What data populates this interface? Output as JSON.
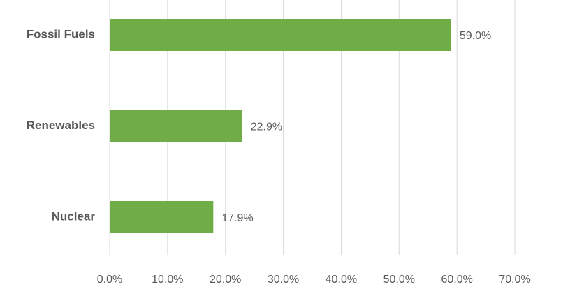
{
  "chart_data": {
    "type": "hbar",
    "categories": [
      "Fossil Fuels",
      "Renewables",
      "Nuclear"
    ],
    "values": [
      59.0,
      22.9,
      17.9
    ],
    "value_labels": [
      "59.0%",
      "22.9%",
      "17.9%"
    ],
    "color": "#70ad47",
    "xlim": [
      0,
      70
    ],
    "xticks": [
      {
        "value": 0,
        "label": "0.0%"
      },
      {
        "value": 10,
        "label": "10.0%"
      },
      {
        "value": 20,
        "label": "20.0%"
      },
      {
        "value": 30,
        "label": "30.0%"
      },
      {
        "value": 40,
        "label": "40.0%"
      },
      {
        "value": 50,
        "label": "50.0%"
      },
      {
        "value": 60,
        "label": "60.0%"
      },
      {
        "value": 70,
        "label": "70.0%"
      }
    ],
    "grid": true
  }
}
